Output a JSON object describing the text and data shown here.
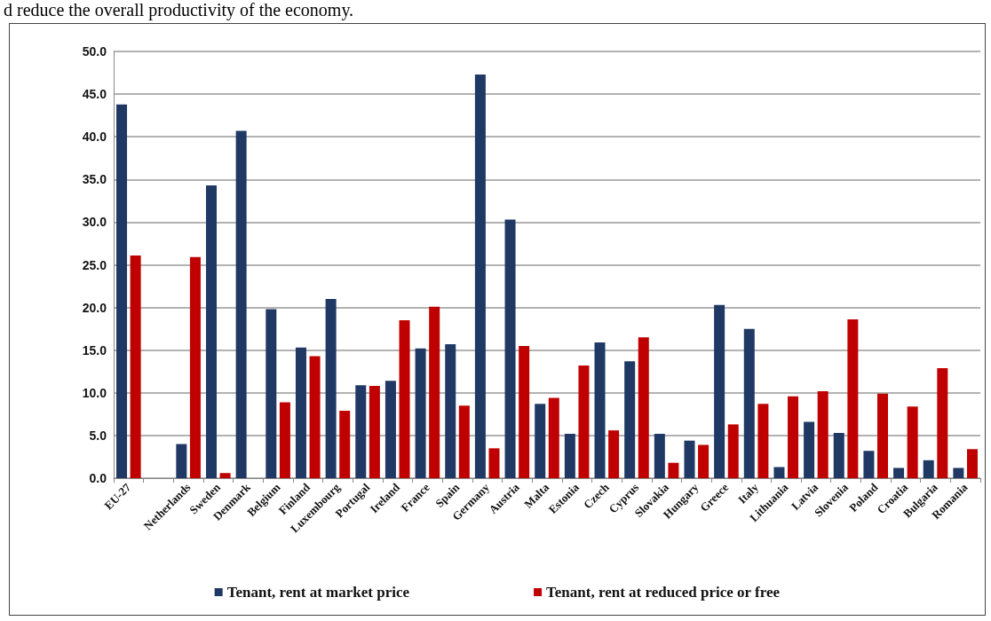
{
  "chart_data": {
    "type": "bar",
    "annotations": [
      "d reduce the overall productivity of the economy."
    ],
    "categories": [
      "EU-27",
      null,
      "Netherlands",
      "Sweden",
      "Denmark",
      "Belgium",
      "Finland",
      "Luxembourg",
      "Portugal",
      "Ireland",
      "France",
      "Spain",
      "Germany",
      "Austria",
      "Malta",
      "Estonia",
      "Czech",
      "Cyprus",
      "Slovakia",
      "Hungary",
      "Greece",
      "Italy",
      "Lithuania",
      "Latvia",
      "Slovenia",
      "Poland",
      "Croatia",
      "Bulgaria",
      "Romania"
    ],
    "series": [
      {
        "name": "Tenant, rent at market price",
        "color": "#1f3864",
        "values": [
          43.8,
          null,
          4.0,
          34.3,
          40.7,
          19.8,
          15.3,
          21.0,
          10.9,
          11.4,
          15.2,
          15.7,
          47.3,
          30.3,
          8.7,
          5.2,
          15.9,
          13.7,
          5.2,
          4.4,
          20.3,
          17.5,
          1.3,
          6.6,
          5.3,
          3.2,
          1.2,
          2.1,
          1.2
        ]
      },
      {
        "name": "Tenant, rent at reduced price or free",
        "color": "#c00000",
        "values": [
          26.1,
          null,
          25.9,
          0.6,
          null,
          8.9,
          14.3,
          7.9,
          10.8,
          18.5,
          20.1,
          8.5,
          3.5,
          15.5,
          9.4,
          13.2,
          5.6,
          16.5,
          1.8,
          3.9,
          6.3,
          8.7,
          9.6,
          10.2,
          18.6,
          9.9,
          8.4,
          12.9,
          3.4
        ]
      }
    ],
    "ylim": [
      0,
      50
    ],
    "yticks": [
      {
        "value": 0,
        "label": "0.0"
      },
      {
        "value": 5,
        "label": "5.0"
      },
      {
        "value": 10,
        "label": "10.0"
      },
      {
        "value": 15,
        "label": "15.0"
      },
      {
        "value": 20,
        "label": "20.0"
      },
      {
        "value": 25,
        "label": "25.0"
      },
      {
        "value": 30,
        "label": "30.0"
      },
      {
        "value": 35,
        "label": "35.0"
      },
      {
        "value": 40,
        "label": "40.0"
      },
      {
        "value": 45,
        "label": "45.0"
      },
      {
        "value": 50,
        "label": "50.0"
      }
    ],
    "grid": "y",
    "legend": "bottom"
  }
}
